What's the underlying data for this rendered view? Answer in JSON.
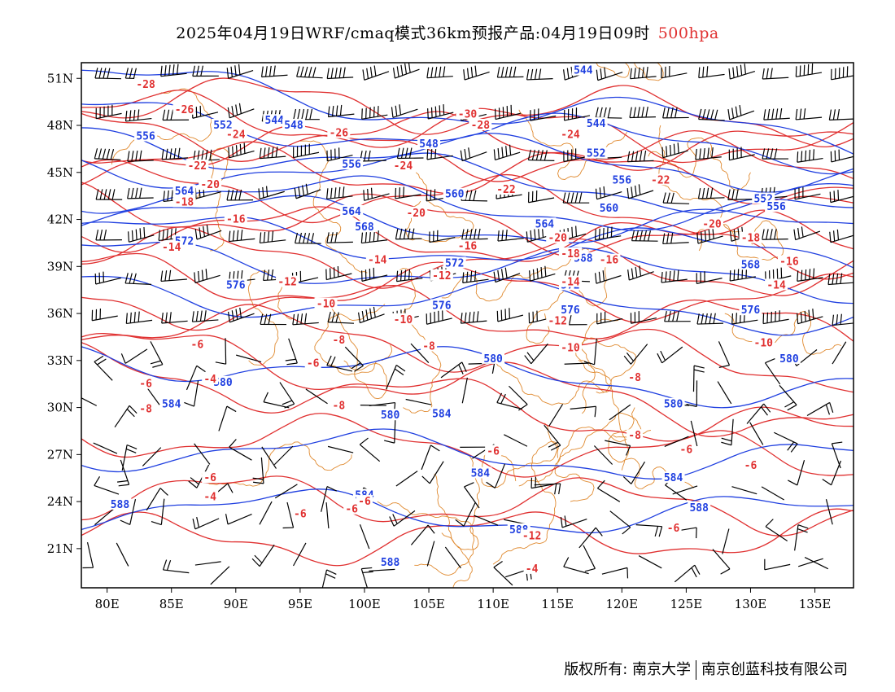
{
  "header": {
    "title": "2025年04月19日WRF/cmaq模式36km预报产品:04月19日09时",
    "level": "500hpa",
    "level_color": "#e03030"
  },
  "map": {
    "lon_ticks": [
      "80E",
      "85E",
      "90E",
      "95E",
      "100E",
      "105E",
      "110E",
      "115E",
      "120E",
      "125E",
      "130E",
      "135E"
    ],
    "lat_ticks": [
      "51N",
      "48N",
      "45N",
      "42N",
      "39N",
      "36N",
      "33N",
      "30N",
      "27N",
      "24N",
      "21N"
    ],
    "lon_range": [
      78,
      138
    ],
    "lat_range": [
      18.5,
      52
    ],
    "geopotential_color": "#1f3fe0",
    "temperature_color": "#e03030",
    "boundary_color": "#e08a30",
    "wind_color": "#000000",
    "geopotential_labels": [
      "544",
      "548",
      "552",
      "556",
      "560",
      "564",
      "568",
      "572",
      "576",
      "580",
      "584",
      "588"
    ],
    "temperature_labels": [
      "-30",
      "-28",
      "-26",
      "-24",
      "-22",
      "-20",
      "-18",
      "-16",
      "-14",
      "-12",
      "-10",
      "-8",
      "-6",
      "-4"
    ]
  },
  "footer": {
    "copyright": "版权所有: 南京大学",
    "company": "南京创蓝科技有限公司"
  }
}
